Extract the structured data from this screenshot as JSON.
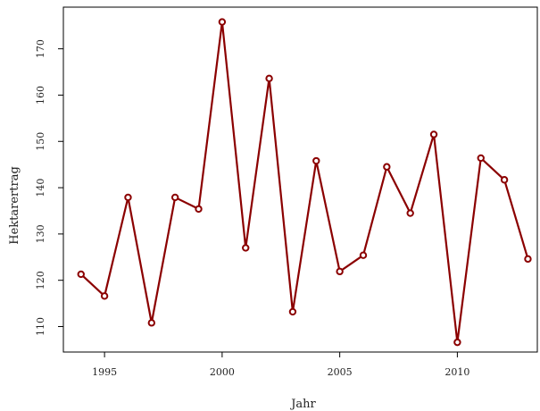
{
  "chart_data": {
    "type": "line",
    "title": "",
    "xlabel": "Jahr",
    "ylabel": "Hektarertrag",
    "xlim": [
      1993.25,
      2013.4
    ],
    "ylim": [
      104.5,
      179
    ],
    "x_ticks": [
      1995,
      2000,
      2005,
      2010
    ],
    "y_ticks": [
      110,
      120,
      130,
      140,
      150,
      160,
      170
    ],
    "grid": false,
    "legend": "none",
    "series": [
      {
        "color": "#8b0000",
        "marker": "open-circle",
        "x": [
          1994,
          1995,
          1996,
          1997,
          1998,
          1999,
          2000,
          2001,
          2002,
          2003,
          2004,
          2005,
          2006,
          2007,
          2008,
          2009,
          2010,
          2011,
          2012,
          2013
        ],
        "y": [
          121.3,
          116.6,
          137.9,
          110.8,
          137.9,
          135.4,
          175.8,
          127.0,
          163.6,
          113.2,
          145.8,
          121.9,
          125.4,
          144.5,
          134.5,
          151.5,
          106.6,
          146.4,
          141.7,
          124.6
        ]
      }
    ]
  }
}
